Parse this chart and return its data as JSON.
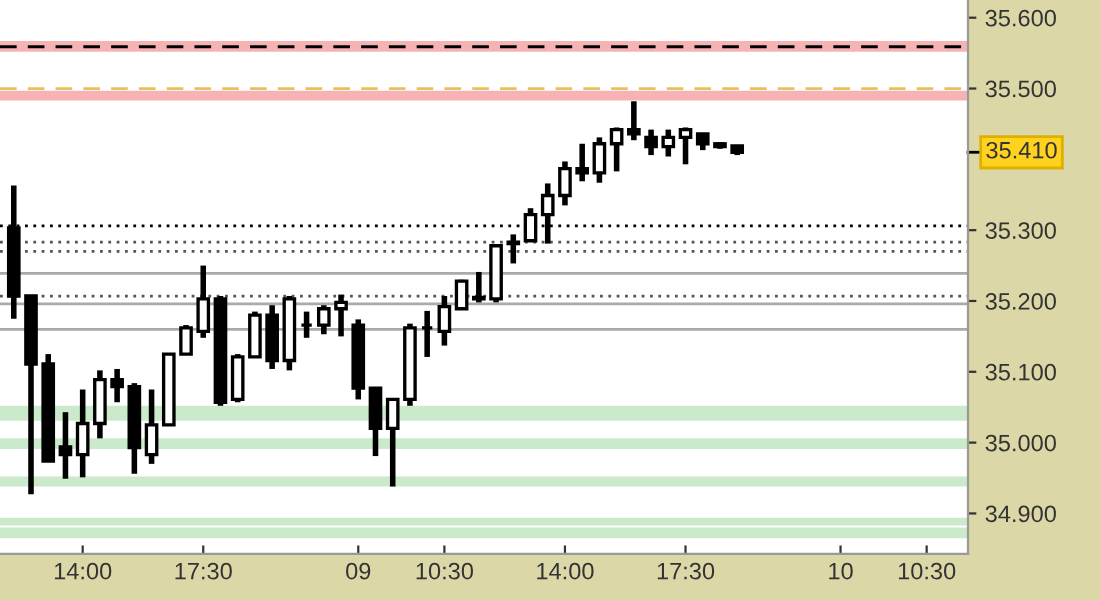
{
  "chart_data": {
    "type": "candlestick",
    "categories": [
      null,
      null,
      null,
      null,
      "14:00",
      null,
      null,
      null,
      null,
      null,
      null,
      "17:30",
      null,
      null,
      null,
      null,
      null,
      null,
      null,
      null,
      "09",
      null,
      null,
      null,
      null,
      "10:30",
      null,
      null,
      null,
      null,
      null,
      null,
      "14:00",
      null,
      null,
      null,
      null,
      null,
      null,
      "17:30",
      null,
      null,
      null,
      null,
      null,
      null,
      null,
      null,
      "10",
      null,
      null,
      null,
      null,
      "10:30",
      null,
      null
    ],
    "ohlc": [
      [
        35.303,
        35.363,
        35.175,
        35.207
      ],
      [
        35.207,
        35.207,
        34.927,
        35.111
      ],
      [
        35.111,
        35.125,
        34.974,
        34.974
      ],
      [
        34.994,
        35.043,
        34.949,
        34.983
      ],
      [
        34.983,
        35.075,
        34.951,
        35.027
      ],
      [
        35.027,
        35.102,
        35.006,
        35.089
      ],
      [
        35.089,
        35.104,
        35.057,
        35.079
      ],
      [
        35.079,
        35.084,
        34.956,
        34.993
      ],
      [
        34.983,
        35.075,
        34.97,
        35.025
      ],
      [
        35.025,
        35.125,
        35.025,
        35.125
      ],
      [
        35.125,
        35.166,
        35.125,
        35.162
      ],
      [
        35.157,
        35.25,
        35.148,
        35.203
      ],
      [
        35.203,
        35.207,
        35.052,
        35.057
      ],
      [
        35.061,
        35.125,
        35.057,
        35.121
      ],
      [
        35.121,
        35.185,
        35.121,
        35.18
      ],
      [
        35.18,
        35.194,
        35.104,
        35.116
      ],
      [
        35.116,
        35.207,
        35.102,
        35.203
      ],
      [
        35.166,
        35.185,
        35.148,
        35.166
      ],
      [
        35.166,
        35.194,
        35.153,
        35.189
      ],
      [
        35.189,
        35.209,
        35.15,
        35.198
      ],
      [
        35.166,
        35.174,
        35.061,
        35.077
      ],
      [
        35.077,
        35.077,
        34.981,
        35.02
      ],
      [
        35.02,
        35.061,
        34.938,
        35.061
      ],
      [
        35.061,
        35.168,
        35.052,
        35.162
      ],
      [
        35.162,
        35.186,
        35.121,
        35.162
      ],
      [
        35.157,
        35.207,
        35.137,
        35.192
      ],
      [
        35.189,
        35.23,
        35.189,
        35.228
      ],
      [
        35.205,
        35.241,
        35.198,
        35.203
      ],
      [
        35.203,
        35.278,
        35.198,
        35.278
      ],
      [
        35.281,
        35.294,
        35.253,
        35.283
      ],
      [
        35.285,
        35.331,
        35.285,
        35.322
      ],
      [
        35.322,
        35.366,
        35.281,
        35.349
      ],
      [
        35.349,
        35.397,
        35.335,
        35.387
      ],
      [
        35.387,
        35.422,
        35.369,
        35.381
      ],
      [
        35.381,
        35.431,
        35.367,
        35.422
      ],
      [
        35.422,
        35.445,
        35.383,
        35.442
      ],
      [
        35.442,
        35.482,
        35.427,
        35.436
      ],
      [
        35.431,
        35.442,
        35.406,
        35.418
      ],
      [
        35.418,
        35.442,
        35.404,
        35.431
      ],
      [
        35.431,
        35.445,
        35.393,
        35.442
      ],
      [
        35.436,
        35.436,
        35.413,
        35.422
      ],
      [
        35.422,
        35.424,
        35.415,
        35.418
      ],
      [
        35.419,
        35.419,
        35.406,
        35.41
      ],
      null,
      null,
      null,
      null,
      null,
      null,
      null,
      null,
      null,
      null,
      null,
      null,
      null
    ],
    "color": "#000000",
    "ylim": [
      34.843,
      35.625
    ],
    "yticks": [
      {
        "value": 34.9,
        "label": "34.900"
      },
      {
        "value": 35.0,
        "label": "35.000"
      },
      {
        "value": 35.1,
        "label": "35.100"
      },
      {
        "value": 35.2,
        "label": "35.200"
      },
      {
        "value": 35.3,
        "label": "35.300"
      },
      {
        "value": 35.5,
        "label": "35.500"
      },
      {
        "value": 35.6,
        "label": "35.600"
      }
    ],
    "grid": false,
    "ref_lines": [
      {
        "axis": "y",
        "value": 35.283,
        "color": "#555555",
        "line_style": "dotted"
      },
      {
        "axis": "y",
        "value": 35.27,
        "color": "#555555",
        "line_style": "dotted"
      },
      {
        "axis": "y",
        "value": 35.207,
        "color": "#555555",
        "line_style": "dotted"
      },
      {
        "axis": "y",
        "value": 35.239,
        "color": "#aaaaaa",
        "line_style": "solid"
      },
      {
        "axis": "y",
        "value": 35.196,
        "color": "#aaaaaa",
        "line_style": "solid"
      },
      {
        "axis": "y",
        "value": 35.16,
        "color": "#aaaaaa",
        "line_style": "solid"
      },
      {
        "axis": "y",
        "value": 35.306,
        "color": "#000000",
        "line_style": "dotted"
      },
      {
        "axis": "y",
        "value": 35.559,
        "color": "#000000",
        "line_style": "dashed"
      },
      {
        "axis": "y",
        "value": 35.5,
        "color": "#e8c060",
        "line_style": "dashed"
      }
    ],
    "bands": [
      {
        "axis": "y",
        "from": 35.552,
        "to": 35.567,
        "color": "#f08080"
      },
      {
        "axis": "y",
        "from": 35.483,
        "to": 35.497,
        "color": "#f08080"
      },
      {
        "axis": "y",
        "from": 35.031,
        "to": 35.052,
        "color": "#a8dca8"
      },
      {
        "axis": "y",
        "from": 34.991,
        "to": 35.006,
        "color": "#a8dca8"
      },
      {
        "axis": "y",
        "from": 34.938,
        "to": 34.952,
        "color": "#a8dca8"
      },
      {
        "axis": "y",
        "from": 34.883,
        "to": 34.894,
        "color": "#a8dca8"
      },
      {
        "axis": "y",
        "from": 34.865,
        "to": 34.88,
        "color": "#a8dca8"
      }
    ],
    "annotations": [
      "35.410"
    ]
  }
}
